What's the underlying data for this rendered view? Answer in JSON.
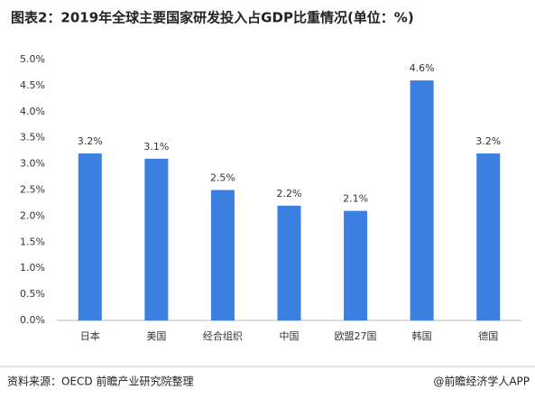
{
  "chart_data": {
    "type": "bar",
    "title": "图表2：2019年全球主要国家研发投入占GDP比重情况(单位：%)",
    "categories": [
      "日本",
      "美国",
      "经合组织",
      "中国",
      "欧盟27国",
      "韩国",
      "德国"
    ],
    "values": [
      3.2,
      3.1,
      2.5,
      2.2,
      2.1,
      4.6,
      3.2
    ],
    "value_labels": [
      "3.2%",
      "3.1%",
      "2.5%",
      "2.2%",
      "2.1%",
      "4.6%",
      "3.2%"
    ],
    "color": "#3b7fe0",
    "ylim": [
      0,
      5
    ],
    "yticks": [
      {
        "value": 0,
        "label": "0.0%"
      },
      {
        "value": 0.5,
        "label": "0.5%"
      },
      {
        "value": 1,
        "label": "1.0%"
      },
      {
        "value": 1.5,
        "label": "1.5%"
      },
      {
        "value": 2,
        "label": "2.0%"
      },
      {
        "value": 2.5,
        "label": "2.5%"
      },
      {
        "value": 3,
        "label": "3.0%"
      },
      {
        "value": 3.5,
        "label": "3.5%"
      },
      {
        "value": 4,
        "label": "4.0%"
      },
      {
        "value": 4.5,
        "label": "4.5%"
      },
      {
        "value": 5,
        "label": "5.0%"
      }
    ],
    "grid": false,
    "source": "资料来源：OECD 前瞻产业研究院整理",
    "credit": "@前瞻经济学人APP"
  }
}
